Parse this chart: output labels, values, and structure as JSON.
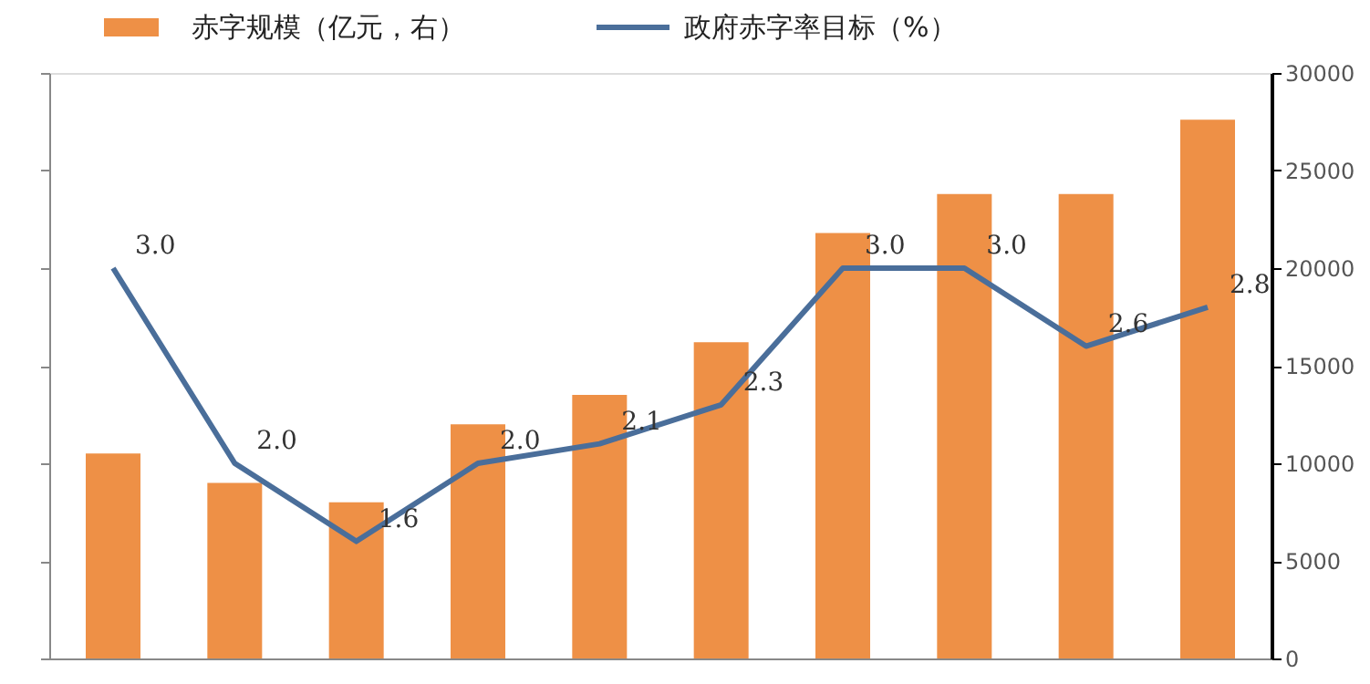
{
  "chart_data": {
    "type": "bar",
    "categories": [
      null,
      null,
      null,
      null,
      null,
      null,
      null,
      null,
      null,
      null
    ],
    "series": [
      {
        "name": "赤字规模（亿元，右）",
        "axis": "y2",
        "color": "#ee9046",
        "values": [
          10500,
          9000,
          8000,
          12000,
          13500,
          16200,
          21800,
          23800,
          23800,
          27600
        ]
      },
      {
        "name": "政府赤字率目标（%）",
        "type": "line",
        "axis": "y",
        "color": "#4a6e9a",
        "values": [
          3.0,
          2.0,
          1.6,
          2.0,
          2.1,
          2.3,
          3.0,
          3.0,
          2.6,
          2.8
        ],
        "value_labels": [
          "3.0",
          "2.0",
          "1.6",
          "2.0",
          "2.1",
          "2.3",
          "3.0",
          "3.0",
          "2.6",
          "2.8"
        ]
      }
    ],
    "ylim": [
      1.0,
      4.0
    ],
    "yticks": [
      {
        "value": 1.0,
        "label": null
      },
      {
        "value": 1.5,
        "label": null
      },
      {
        "value": 2.0,
        "label": null
      },
      {
        "value": 2.5,
        "label": null
      },
      {
        "value": 3.0,
        "label": null
      },
      {
        "value": 3.5,
        "label": null
      },
      {
        "value": 4.0,
        "label": null
      }
    ],
    "y2lim": [
      0,
      30000
    ],
    "y2ticks": [
      0,
      5000,
      10000,
      15000,
      20000,
      25000,
      30000
    ],
    "grid": false,
    "legend": "top"
  }
}
